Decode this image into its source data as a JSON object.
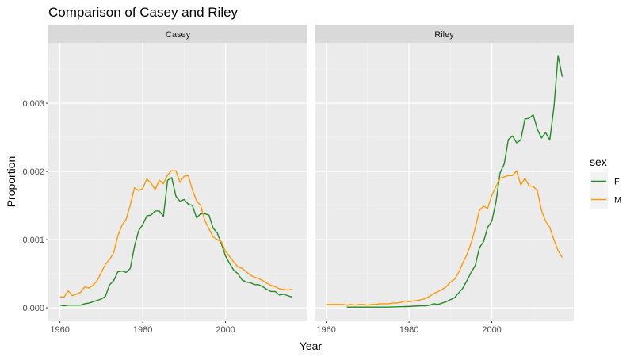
{
  "chart_data": {
    "type": "line",
    "title": "Comparison of Casey and Riley",
    "xlabel": "Year",
    "ylabel": "Proportion",
    "xlim": [
      1960,
      2017
    ],
    "ylim": [
      0,
      0.0037
    ],
    "x_ticks": [
      1960,
      1980,
      2000
    ],
    "x_tick_labels": [
      "1960",
      "1980",
      "2000"
    ],
    "y_ticks": [
      0,
      0.001,
      0.002,
      0.003
    ],
    "y_tick_labels": [
      "0.000",
      "0.001",
      "0.002",
      "0.003"
    ],
    "grid": true,
    "legend": {
      "title": "sex",
      "position": "right",
      "entries": [
        {
          "label": "F",
          "color": "#228B22"
        },
        {
          "label": "M",
          "color": "#FF9900"
        }
      ]
    },
    "panels": [
      {
        "strip": "Casey",
        "series": [
          {
            "name": "F",
            "color": "#228B22",
            "x": [
              1960,
              1961,
              1962,
              1963,
              1964,
              1965,
              1966,
              1967,
              1968,
              1969,
              1970,
              1971,
              1972,
              1973,
              1974,
              1975,
              1976,
              1977,
              1978,
              1979,
              1980,
              1981,
              1982,
              1983,
              1984,
              1985,
              1986,
              1987,
              1988,
              1989,
              1990,
              1991,
              1992,
              1993,
              1994,
              1995,
              1996,
              1997,
              1998,
              1999,
              2000,
              2001,
              2002,
              2003,
              2004,
              2005,
              2006,
              2007,
              2008,
              2009,
              2010,
              2011,
              2012,
              2013,
              2014,
              2015,
              2016
            ],
            "y": [
              4e-05,
              3e-05,
              4e-05,
              4e-05,
              4e-05,
              4e-05,
              6e-05,
              7e-05,
              9e-05,
              0.00011,
              0.00013,
              0.00017,
              0.00034,
              0.0004,
              0.00053,
              0.00054,
              0.00052,
              0.00058,
              0.0009,
              0.00113,
              0.00122,
              0.00135,
              0.00136,
              0.00142,
              0.00142,
              0.00134,
              0.00187,
              0.00191,
              0.00164,
              0.00156,
              0.00159,
              0.00152,
              0.0015,
              0.00132,
              0.00138,
              0.00138,
              0.00136,
              0.00117,
              0.0011,
              0.00094,
              0.00076,
              0.00065,
              0.00055,
              0.0005,
              0.00041,
              0.00038,
              0.00037,
              0.00034,
              0.00034,
              0.00031,
              0.00027,
              0.00024,
              0.00024,
              0.00019,
              0.0002,
              0.00018,
              0.00016
            ]
          },
          {
            "name": "M",
            "color": "#FF9900",
            "x": [
              1960,
              1961,
              1962,
              1963,
              1964,
              1965,
              1966,
              1967,
              1968,
              1969,
              1970,
              1971,
              1972,
              1973,
              1974,
              1975,
              1976,
              1977,
              1978,
              1979,
              1980,
              1981,
              1982,
              1983,
              1984,
              1985,
              1986,
              1987,
              1988,
              1989,
              1990,
              1991,
              1992,
              1993,
              1994,
              1995,
              1996,
              1997,
              1998,
              1999,
              2000,
              2001,
              2002,
              2003,
              2004,
              2005,
              2006,
              2007,
              2008,
              2009,
              2010,
              2011,
              2012,
              2013,
              2014,
              2015,
              2016
            ],
            "y": [
              0.00016,
              0.00016,
              0.00025,
              0.00018,
              0.0002,
              0.00023,
              0.00031,
              0.00029,
              0.00033,
              0.0004,
              0.00052,
              0.00064,
              0.00071,
              0.00081,
              0.00106,
              0.00121,
              0.0013,
              0.00151,
              0.00176,
              0.00172,
              0.00175,
              0.00189,
              0.00183,
              0.00173,
              0.00187,
              0.00182,
              0.00195,
              0.00201,
              0.00201,
              0.00184,
              0.00193,
              0.00194,
              0.00173,
              0.00157,
              0.0015,
              0.00128,
              0.00116,
              0.00104,
              0.001,
              0.00097,
              0.00083,
              0.00075,
              0.00067,
              0.0006,
              0.00058,
              0.00053,
              0.00048,
              0.00045,
              0.00043,
              0.0004,
              0.00036,
              0.00033,
              0.00031,
              0.00028,
              0.00027,
              0.00026,
              0.00027
            ]
          }
        ]
      },
      {
        "strip": "Riley",
        "series": [
          {
            "name": "F",
            "color": "#228B22",
            "x": [
              1965,
              1970,
              1975,
              1980,
              1983,
              1984,
              1985,
              1986,
              1987,
              1988,
              1989,
              1990,
              1991,
              1992,
              1993,
              1994,
              1995,
              1996,
              1997,
              1998,
              1999,
              2000,
              2001,
              2002,
              2003,
              2004,
              2005,
              2006,
              2007,
              2008,
              2009,
              2010,
              2011,
              2012,
              2013,
              2014,
              2015,
              2016,
              2017
            ],
            "y": [
              1e-05,
              1e-05,
              1e-05,
              2e-05,
              3e-05,
              3e-05,
              4e-05,
              6e-05,
              5e-05,
              7e-05,
              9e-05,
              0.00012,
              0.00015,
              0.00022,
              0.00029,
              0.0004,
              0.00052,
              0.00062,
              0.00088,
              0.00097,
              0.00118,
              0.00127,
              0.00155,
              0.00198,
              0.00211,
              0.00247,
              0.00252,
              0.00242,
              0.00246,
              0.00277,
              0.00278,
              0.00283,
              0.00262,
              0.00249,
              0.00257,
              0.00246,
              0.00294,
              0.0037,
              0.00339
            ]
          },
          {
            "name": "M",
            "color": "#FF9900",
            "x": [
              1960,
              1961,
              1962,
              1963,
              1964,
              1965,
              1966,
              1967,
              1968,
              1969,
              1970,
              1971,
              1972,
              1973,
              1974,
              1975,
              1976,
              1977,
              1978,
              1979,
              1980,
              1981,
              1982,
              1983,
              1984,
              1985,
              1986,
              1987,
              1988,
              1989,
              1990,
              1991,
              1992,
              1993,
              1994,
              1995,
              1996,
              1997,
              1998,
              1999,
              2000,
              2001,
              2002,
              2003,
              2004,
              2005,
              2006,
              2007,
              2008,
              2009,
              2010,
              2011,
              2012,
              2013,
              2014,
              2015,
              2016,
              2017
            ],
            "y": [
              5e-05,
              5e-05,
              5e-05,
              5e-05,
              5e-05,
              4e-05,
              5e-05,
              4e-05,
              5e-05,
              5e-05,
              4e-05,
              5e-05,
              5e-05,
              6e-05,
              6e-05,
              6e-05,
              7e-05,
              7e-05,
              8e-05,
              0.0001,
              9e-05,
              0.0001,
              0.00011,
              0.00012,
              0.00014,
              0.00017,
              0.00021,
              0.00024,
              0.00027,
              0.00031,
              0.00038,
              0.00042,
              0.00052,
              0.00066,
              0.00078,
              0.00095,
              0.00117,
              0.00143,
              0.00149,
              0.00146,
              0.00165,
              0.00178,
              0.0019,
              0.00192,
              0.00194,
              0.00194,
              0.00201,
              0.0018,
              0.0019,
              0.00179,
              0.00178,
              0.00172,
              0.00143,
              0.00127,
              0.00118,
              0.001,
              0.00084,
              0.00074
            ]
          }
        ]
      }
    ]
  }
}
